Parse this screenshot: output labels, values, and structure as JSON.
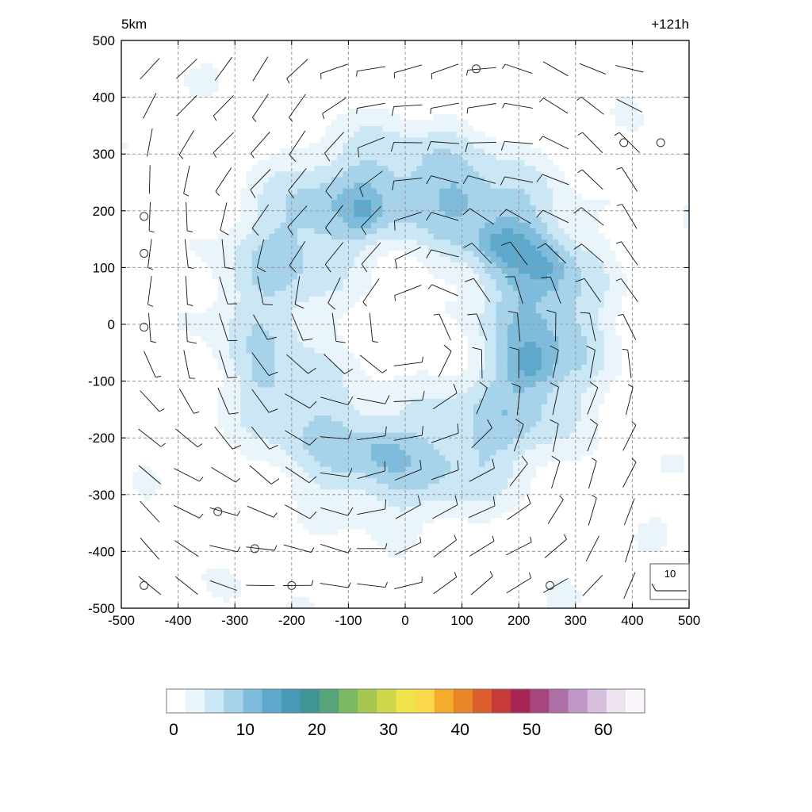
{
  "chart_data": {
    "type": "heatmap",
    "corner_left": "5km",
    "corner_right": "+121h",
    "x_ticks": [
      -500,
      -400,
      -300,
      -200,
      -100,
      0,
      100,
      200,
      300,
      400,
      500
    ],
    "y_ticks": [
      500,
      400,
      300,
      200,
      100,
      0,
      -100,
      -200,
      -300,
      -400,
      -500
    ],
    "xlim": [
      -500,
      500
    ],
    "ylim": [
      -500,
      500
    ],
    "grid": true,
    "field": {
      "pattern": "annular ring centred near (0, 0), weak interior below 5",
      "ring_radius": 240,
      "ring_peak_value": 10,
      "local_maxima": [
        {
          "x": 220,
          "y": -70,
          "value": 14
        },
        {
          "x": 170,
          "y": 140,
          "value": 13
        },
        {
          "x": -70,
          "y": 200,
          "value": 12
        },
        {
          "x": 250,
          "y": 100,
          "value": 12
        },
        {
          "x": -40,
          "y": -220,
          "value": 12
        },
        {
          "x": 90,
          "y": 220,
          "value": 11
        },
        {
          "x": -250,
          "y": -100,
          "value": 11
        }
      ],
      "max_value": 14
    },
    "colorbar": {
      "ticks": [
        "0",
        "10",
        "20",
        "30",
        "40",
        "50",
        "60"
      ],
      "min": 0,
      "max": 65,
      "colors": [
        "#ffffff",
        "#e9f4fb",
        "#cbe6f5",
        "#a6d2ea",
        "#7fbcdc",
        "#5ea8cc",
        "#4799b5",
        "#3f9496",
        "#58a47a",
        "#7db862",
        "#a6c84f",
        "#cfd64a",
        "#f0e44c",
        "#f9d949",
        "#f4ac2d",
        "#ea8526",
        "#db5e2c",
        "#c63b3a",
        "#a52454",
        "#a6457e",
        "#ae6ea6",
        "#bf97c6",
        "#d7bedd",
        "#eee2f0",
        "#faf5fb"
      ]
    },
    "wind_barb_key": {
      "label": "10"
    },
    "calm_markers": [
      {
        "x": 125,
        "y": 450
      },
      {
        "x": 385,
        "y": 320
      },
      {
        "x": 450,
        "y": 320
      },
      {
        "x": -460,
        "y": 190
      },
      {
        "x": -460,
        "y": 125
      },
      {
        "x": -460,
        "y": -5
      },
      {
        "x": -330,
        "y": -330
      },
      {
        "x": -265,
        "y": -395
      },
      {
        "x": -460,
        "y": -460
      },
      {
        "x": -200,
        "y": -460
      },
      {
        "x": 255,
        "y": -460
      }
    ]
  }
}
